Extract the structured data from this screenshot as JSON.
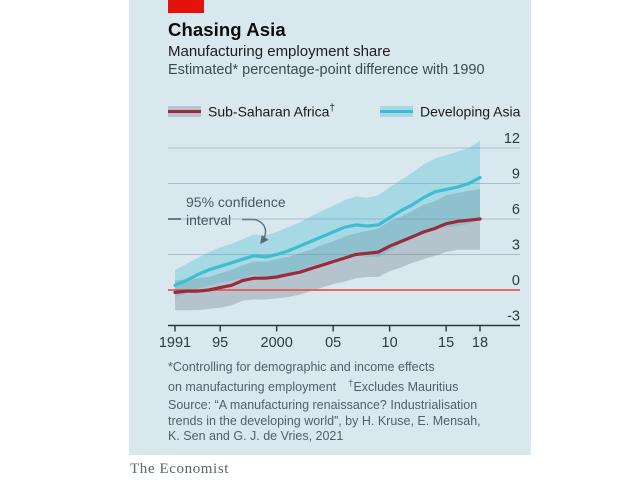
{
  "header": {
    "tag_color": "#e3120b",
    "title": "Chasing Asia",
    "subtitle": "Manufacturing employment share",
    "note": "Estimated* percentage-point difference with 1990"
  },
  "legend": {
    "items": [
      {
        "label": "Sub-Saharan Africa",
        "sup": "†",
        "line_color": "#9a2b3c",
        "band_color": "rgba(100,112,125,0.30)"
      },
      {
        "label": "Developing Asia",
        "sup": "",
        "line_color": "#3ebcd2",
        "band_color": "rgba(62,188,210,0.32)"
      }
    ]
  },
  "annotation": {
    "line1": "95% confidence",
    "line2": "interval"
  },
  "chart_data": {
    "type": "line",
    "title": "Chasing Asia",
    "subtitle": "Manufacturing employment share",
    "units": "Estimated* percentage-point difference with 1990",
    "x_range": [
      1991,
      2018
    ],
    "x": [
      1991,
      1992,
      1993,
      1994,
      1995,
      1996,
      1997,
      1998,
      1999,
      2000,
      2001,
      2002,
      2003,
      2004,
      2005,
      2006,
      2007,
      2008,
      2009,
      2010,
      2011,
      2012,
      2013,
      2014,
      2015,
      2016,
      2017,
      2018
    ],
    "x_ticks": [
      {
        "v": 1991,
        "label": "1991"
      },
      {
        "v": 1995,
        "label": "95"
      },
      {
        "v": 2000,
        "label": "2000"
      },
      {
        "v": 2005,
        "label": "05"
      },
      {
        "v": 2010,
        "label": "10"
      },
      {
        "v": 2015,
        "label": "15"
      },
      {
        "v": 2018,
        "label": "18"
      }
    ],
    "y_ticks": [
      12,
      9,
      6,
      3,
      0,
      -3
    ],
    "ylim": [
      -3,
      13.5
    ],
    "grid": true,
    "legend_position": "top",
    "zero_line_color": "#e25b52",
    "grid_color": "#a9bdc8",
    "axis_color": "#29343c",
    "label_color": "#2e3a42",
    "series": [
      {
        "name": "Sub-Saharan Africa†",
        "color": "#9a2b3c",
        "band_color": "rgba(100,112,125,0.30)",
        "values": [
          -0.2,
          -0.1,
          -0.1,
          0.0,
          0.2,
          0.4,
          0.8,
          1.0,
          1.0,
          1.1,
          1.3,
          1.5,
          1.8,
          2.1,
          2.4,
          2.7,
          3.0,
          3.1,
          3.2,
          3.7,
          4.1,
          4.5,
          4.9,
          5.2,
          5.6,
          5.8,
          5.9,
          6.0
        ],
        "high": [
          0.8,
          0.9,
          1.0,
          1.1,
          1.4,
          1.7,
          2.1,
          2.4,
          2.4,
          2.6,
          2.8,
          3.1,
          3.4,
          3.8,
          4.1,
          4.5,
          4.8,
          5.0,
          5.2,
          5.8,
          6.2,
          6.7,
          7.2,
          7.5,
          8.0,
          8.2,
          8.4,
          8.5
        ],
        "low": [
          -1.7,
          -1.7,
          -1.7,
          -1.6,
          -1.5,
          -1.3,
          -0.9,
          -0.8,
          -0.8,
          -0.7,
          -0.6,
          -0.4,
          -0.1,
          0.2,
          0.5,
          0.7,
          1.0,
          1.1,
          1.1,
          1.6,
          1.9,
          2.3,
          2.6,
          2.9,
          3.2,
          3.4,
          3.4,
          3.4
        ]
      },
      {
        "name": "Developing Asia",
        "color": "#3ebcd2",
        "band_color": "rgba(62,188,210,0.32)",
        "values": [
          0.4,
          0.8,
          1.3,
          1.7,
          2.0,
          2.3,
          2.6,
          2.9,
          2.8,
          3.0,
          3.3,
          3.7,
          4.1,
          4.5,
          4.9,
          5.3,
          5.5,
          5.4,
          5.5,
          6.1,
          6.7,
          7.2,
          7.8,
          8.3,
          8.5,
          8.7,
          9.0,
          9.5
        ],
        "high": [
          1.7,
          2.2,
          2.7,
          3.2,
          3.6,
          3.9,
          4.3,
          4.7,
          4.6,
          4.9,
          5.3,
          5.7,
          6.2,
          6.7,
          7.1,
          7.6,
          7.9,
          7.8,
          8.0,
          8.7,
          9.3,
          9.9,
          10.6,
          11.1,
          11.4,
          11.7,
          12.0,
          12.6
        ],
        "low": [
          -0.6,
          -0.3,
          0.1,
          0.4,
          0.6,
          0.8,
          1.0,
          1.3,
          1.1,
          1.2,
          1.4,
          1.7,
          2.0,
          2.3,
          2.6,
          2.9,
          3.0,
          2.8,
          2.8,
          3.3,
          3.9,
          4.3,
          4.8,
          5.2,
          5.3,
          5.4,
          5.6,
          6.0
        ]
      }
    ]
  },
  "footnotes": {
    "line1": "*Controlling for demographic and income effects",
    "line2a": "on manufacturing employment",
    "dagger": "†",
    "line2b": "Excludes Mauritius",
    "source1": "Source: “A manufacturing renaissance? Industrialisation",
    "source2": "trends in the developing world”, by H. Kruse, E. Mensah,",
    "source3": "K. Sen and G. J. de Vries, 2021"
  },
  "brand": "The Economist"
}
